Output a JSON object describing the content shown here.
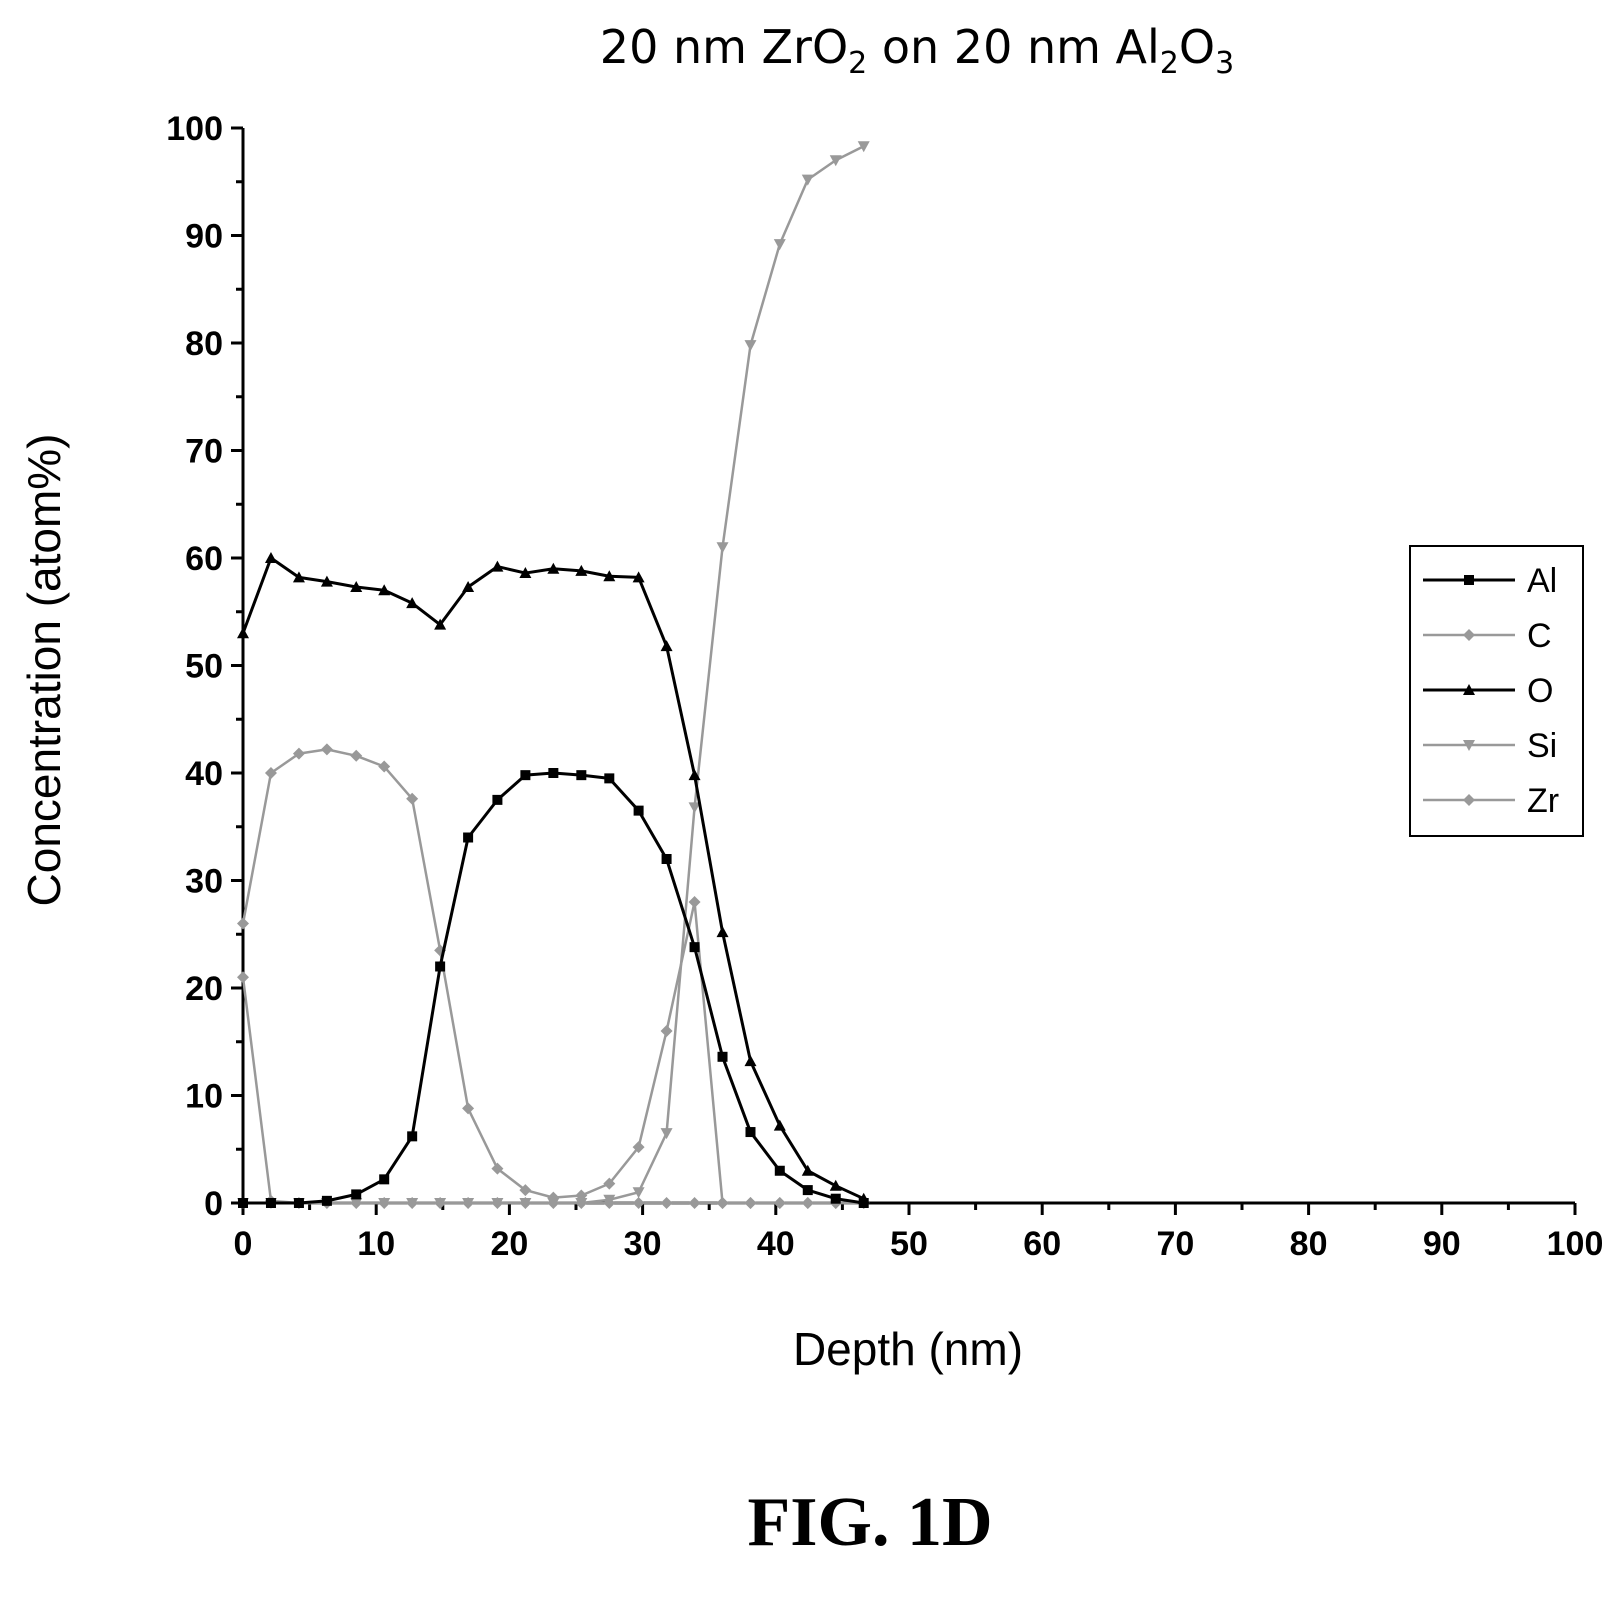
{
  "chart_data": {
    "type": "line",
    "title": {
      "prefix": "20 nm ZrO",
      "sub1": "2",
      "middle": " on 20 nm Al",
      "sub2": "2",
      "o_label": "O",
      "sub3": "3"
    },
    "xlabel": "Depth (nm)",
    "ylabel": "Concentration (atom%)",
    "xlim": [
      0,
      100
    ],
    "ylim": [
      0,
      100
    ],
    "xticks": [
      "0",
      "10",
      "20",
      "30",
      "40",
      "50",
      "60",
      "70",
      "80",
      "90",
      "100"
    ],
    "yticks": [
      "0",
      "10",
      "20",
      "30",
      "40",
      "50",
      "60",
      "70",
      "80",
      "90",
      "100"
    ],
    "grid": false,
    "legend_position": "right",
    "series": [
      {
        "name": "Al",
        "color": "#000000",
        "marker": "square",
        "x": [
          0,
          2.1,
          4.2,
          6.3,
          8.5,
          10.6,
          12.7,
          14.8,
          16.9,
          19.1,
          21.2,
          23.3,
          25.4,
          27.5,
          29.7,
          31.8,
          33.9,
          36.0,
          38.1,
          40.3,
          42.4,
          44.5,
          46.6
        ],
        "y": [
          0,
          0,
          0,
          0.2,
          0.8,
          2.2,
          6.2,
          22.0,
          34.0,
          37.5,
          39.8,
          40.0,
          39.8,
          39.5,
          36.5,
          32.0,
          23.8,
          13.6,
          6.6,
          3.0,
          1.2,
          0.4,
          0
        ]
      },
      {
        "name": "C",
        "color": "#999999",
        "marker": "diamond",
        "x": [
          0,
          2.1,
          4.2,
          6.3,
          8.5,
          10.6,
          12.7,
          14.8,
          16.9,
          19.1,
          21.2,
          23.3,
          25.4,
          27.5,
          29.7,
          31.8,
          33.9,
          36.0,
          38.1,
          40.3,
          42.4,
          44.5,
          46.6
        ],
        "y": [
          21,
          0.2,
          0,
          0,
          0,
          0,
          0,
          0,
          0,
          0,
          0,
          0,
          0,
          0,
          0,
          0,
          0,
          0,
          0,
          0,
          0,
          0,
          0
        ]
      },
      {
        "name": "O",
        "color": "#000000",
        "marker": "triangle",
        "x": [
          0,
          2.1,
          4.2,
          6.3,
          8.5,
          10.6,
          12.7,
          14.8,
          16.9,
          19.1,
          21.2,
          23.3,
          25.4,
          27.5,
          29.7,
          31.8,
          33.9,
          36.0,
          38.1,
          40.3,
          42.4,
          44.5,
          46.6
        ],
        "y": [
          53,
          60,
          58.2,
          57.8,
          57.3,
          57.0,
          55.8,
          53.8,
          57.3,
          59.2,
          58.6,
          59.0,
          58.8,
          58.3,
          58.2,
          51.8,
          39.8,
          25.2,
          13.2,
          7.2,
          3.0,
          1.6,
          0.4
        ]
      },
      {
        "name": "Si",
        "color": "#999999",
        "marker": "inverted-triangle",
        "x": [
          0,
          2.1,
          4.2,
          6.3,
          8.5,
          10.6,
          12.7,
          14.8,
          16.9,
          19.1,
          21.2,
          23.3,
          25.4,
          27.5,
          29.7,
          31.8,
          33.9,
          36.0,
          38.1,
          40.3,
          42.4,
          44.5,
          46.6
        ],
        "y": [
          0,
          0,
          0,
          0,
          0,
          0,
          0,
          0,
          0,
          0,
          0,
          0,
          0,
          0.3,
          1.0,
          6.5,
          36.8,
          61.0,
          79.8,
          89.2,
          95.2,
          97.0,
          98.3
        ]
      },
      {
        "name": "Zr",
        "color": "#999999",
        "marker": "diamond",
        "x": [
          0,
          2.1,
          4.2,
          6.3,
          8.5,
          10.6,
          12.7,
          14.8,
          16.9,
          19.1,
          21.2,
          23.3,
          25.4,
          27.5,
          29.7,
          31.8,
          33.9,
          36.0,
          38.1,
          40.3,
          42.4,
          44.5,
          46.6
        ],
        "y": [
          26,
          40.0,
          41.8,
          42.2,
          41.6,
          40.6,
          37.6,
          23.5,
          8.8,
          3.2,
          1.2,
          0.5,
          0.7,
          1.8,
          5.2,
          16.0,
          28.0,
          0,
          0,
          0,
          0,
          0,
          0
        ]
      }
    ]
  },
  "figure_label": "FIG. 1D"
}
